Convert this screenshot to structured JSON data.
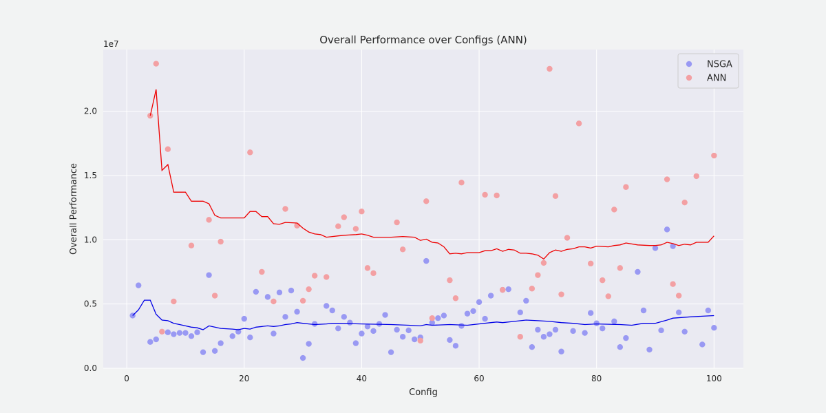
{
  "chart_data": {
    "type": "scatter",
    "title": "Overall Performance over Configs (ANN)",
    "xlabel": "Config",
    "ylabel": "Overall Performance",
    "y_offset_label": "1e7",
    "y_scale": 10000000,
    "xlim": [
      -4,
      105
    ],
    "ylim": [
      0,
      24.8
    ],
    "x_ticks": [
      0,
      20,
      40,
      60,
      80,
      100
    ],
    "x_tick_labels": [
      "0",
      "20",
      "40",
      "60",
      "80",
      "100"
    ],
    "y_ticks": [
      0,
      5,
      10,
      15,
      20
    ],
    "y_tick_labels": [
      "0.0",
      "0.5",
      "1.0",
      "1.5",
      "2.0"
    ],
    "grid": true,
    "legend_position": "top-right",
    "colors": {
      "background": "#eaeaf2",
      "grid": "#ffffff",
      "nsga_point": "#9999f3",
      "ann_point": "#f3a0a3",
      "nsga_line": "#0000e6",
      "ann_line": "#ee0000"
    },
    "series": [
      {
        "name": "NSGA",
        "points": [
          [
            1,
            4.1
          ],
          [
            2,
            6.45
          ],
          [
            4,
            2.05
          ],
          [
            5,
            2.25
          ],
          [
            6,
            null
          ],
          [
            7,
            2.8
          ],
          [
            8,
            2.65
          ],
          [
            9,
            2.75
          ],
          [
            10,
            2.75
          ],
          [
            11,
            2.5
          ],
          [
            12,
            2.8
          ],
          [
            13,
            1.25
          ],
          [
            14,
            7.25
          ],
          [
            15,
            1.35
          ],
          [
            16,
            1.95
          ],
          [
            18,
            2.5
          ],
          [
            19,
            2.85
          ],
          [
            20,
            3.85
          ],
          [
            21,
            2.4
          ],
          [
            22,
            5.95
          ],
          [
            24,
            5.55
          ],
          [
            25,
            2.7
          ],
          [
            26,
            5.9
          ],
          [
            27,
            4.0
          ],
          [
            28,
            6.05
          ],
          [
            29,
            4.4
          ],
          [
            30,
            0.8
          ],
          [
            31,
            1.9
          ],
          [
            32,
            3.45
          ],
          [
            34,
            4.85
          ],
          [
            35,
            4.5
          ],
          [
            36,
            3.1
          ],
          [
            37,
            4.0
          ],
          [
            38,
            3.55
          ],
          [
            39,
            1.95
          ],
          [
            40,
            2.7
          ],
          [
            41,
            3.25
          ],
          [
            42,
            2.9
          ],
          [
            43,
            3.45
          ],
          [
            44,
            4.15
          ],
          [
            45,
            1.25
          ],
          [
            46,
            3.0
          ],
          [
            47,
            2.45
          ],
          [
            48,
            2.95
          ],
          [
            49,
            2.25
          ],
          [
            50,
            2.4
          ],
          [
            51,
            8.35
          ],
          [
            52,
            3.55
          ],
          [
            53,
            3.9
          ],
          [
            54,
            4.1
          ],
          [
            55,
            2.2
          ],
          [
            56,
            1.75
          ],
          [
            57,
            3.3
          ],
          [
            58,
            4.25
          ],
          [
            59,
            4.45
          ],
          [
            60,
            5.15
          ],
          [
            61,
            3.85
          ],
          [
            62,
            5.65
          ],
          [
            64,
            6.1
          ],
          [
            65,
            6.15
          ],
          [
            67,
            4.35
          ],
          [
            68,
            5.25
          ],
          [
            69,
            1.65
          ],
          [
            70,
            3.0
          ],
          [
            71,
            2.45
          ],
          [
            72,
            2.65
          ],
          [
            73,
            3.0
          ],
          [
            74,
            1.3
          ],
          [
            76,
            2.9
          ],
          [
            78,
            2.75
          ],
          [
            79,
            4.3
          ],
          [
            80,
            3.5
          ],
          [
            81,
            3.1
          ],
          [
            83,
            3.65
          ],
          [
            84,
            1.65
          ],
          [
            85,
            2.35
          ],
          [
            87,
            7.5
          ],
          [
            88,
            4.5
          ],
          [
            89,
            1.45
          ],
          [
            90,
            9.35
          ],
          [
            91,
            2.95
          ],
          [
            92,
            10.8
          ],
          [
            93,
            9.5
          ],
          [
            94,
            4.35
          ],
          [
            95,
            2.85
          ],
          [
            98,
            1.85
          ],
          [
            99,
            4.5
          ],
          [
            100,
            3.15
          ]
        ],
        "line": [
          [
            1,
            4.1
          ],
          [
            2,
            4.55
          ],
          [
            3,
            5.3
          ],
          [
            4,
            5.3
          ],
          [
            5,
            4.2
          ],
          [
            6,
            3.75
          ],
          [
            7,
            3.7
          ],
          [
            8,
            3.5
          ],
          [
            9,
            3.4
          ],
          [
            10,
            3.3
          ],
          [
            11,
            3.2
          ],
          [
            12,
            3.15
          ],
          [
            13,
            3.0
          ],
          [
            14,
            3.3
          ],
          [
            15,
            3.2
          ],
          [
            16,
            3.1
          ],
          [
            18,
            3.05
          ],
          [
            19,
            3.0
          ],
          [
            20,
            3.1
          ],
          [
            21,
            3.05
          ],
          [
            22,
            3.2
          ],
          [
            24,
            3.3
          ],
          [
            25,
            3.25
          ],
          [
            26,
            3.3
          ],
          [
            27,
            3.4
          ],
          [
            28,
            3.45
          ],
          [
            29,
            3.55
          ],
          [
            30,
            3.5
          ],
          [
            31,
            3.45
          ],
          [
            32,
            3.4
          ],
          [
            34,
            3.45
          ],
          [
            35,
            3.5
          ],
          [
            36,
            3.5
          ],
          [
            40,
            3.45
          ],
          [
            45,
            3.4
          ],
          [
            48,
            3.35
          ],
          [
            50,
            3.3
          ],
          [
            51,
            3.4
          ],
          [
            52,
            3.35
          ],
          [
            55,
            3.4
          ],
          [
            58,
            3.35
          ],
          [
            62,
            3.55
          ],
          [
            63,
            3.6
          ],
          [
            64,
            3.55
          ],
          [
            66,
            3.65
          ],
          [
            68,
            3.75
          ],
          [
            70,
            3.7
          ],
          [
            72,
            3.65
          ],
          [
            74,
            3.55
          ],
          [
            76,
            3.5
          ],
          [
            78,
            3.4
          ],
          [
            80,
            3.45
          ],
          [
            84,
            3.4
          ],
          [
            86,
            3.35
          ],
          [
            88,
            3.5
          ],
          [
            90,
            3.5
          ],
          [
            92,
            3.75
          ],
          [
            93,
            3.9
          ],
          [
            96,
            4.0
          ],
          [
            98,
            4.05
          ],
          [
            100,
            4.1
          ]
        ]
      },
      {
        "name": "ANN",
        "points": [
          [
            4,
            19.65
          ],
          [
            5,
            23.7
          ],
          [
            6,
            2.85
          ],
          [
            7,
            17.05
          ],
          [
            8,
            5.2
          ],
          [
            11,
            9.55
          ],
          [
            14,
            11.55
          ],
          [
            15,
            5.65
          ],
          [
            16,
            9.85
          ],
          [
            21,
            16.8
          ],
          [
            23,
            7.5
          ],
          [
            25,
            5.2
          ],
          [
            27,
            12.4
          ],
          [
            29,
            11.1
          ],
          [
            30,
            5.25
          ],
          [
            31,
            6.15
          ],
          [
            32,
            7.2
          ],
          [
            34,
            7.1
          ],
          [
            36,
            11.05
          ],
          [
            37,
            11.75
          ],
          [
            39,
            10.85
          ],
          [
            40,
            12.2
          ],
          [
            41,
            7.8
          ],
          [
            42,
            7.4
          ],
          [
            46,
            11.35
          ],
          [
            47,
            9.25
          ],
          [
            51,
            13.0
          ],
          [
            52,
            3.9
          ],
          [
            50,
            2.15
          ],
          [
            55,
            6.85
          ],
          [
            56,
            5.45
          ],
          [
            57,
            14.45
          ],
          [
            61,
            13.5
          ],
          [
            63,
            13.45
          ],
          [
            64,
            6.1
          ],
          [
            67,
            2.45
          ],
          [
            69,
            6.2
          ],
          [
            70,
            7.25
          ],
          [
            71,
            8.2
          ],
          [
            72,
            23.3
          ],
          [
            73,
            13.4
          ],
          [
            74,
            5.75
          ],
          [
            75,
            10.15
          ],
          [
            77,
            19.05
          ],
          [
            79,
            8.15
          ],
          [
            81,
            6.85
          ],
          [
            82,
            5.6
          ],
          [
            83,
            12.35
          ],
          [
            84,
            7.8
          ],
          [
            85,
            14.1
          ],
          [
            92,
            14.7
          ],
          [
            93,
            6.55
          ],
          [
            94,
            5.65
          ],
          [
            95,
            12.9
          ],
          [
            97,
            14.95
          ],
          [
            100,
            16.55
          ]
        ],
        "line": [
          [
            4,
            19.65
          ],
          [
            5,
            21.7
          ],
          [
            6,
            15.4
          ],
          [
            7,
            15.85
          ],
          [
            8,
            13.7
          ],
          [
            10,
            13.7
          ],
          [
            11,
            13.0
          ],
          [
            13,
            13.0
          ],
          [
            14,
            12.8
          ],
          [
            15,
            11.9
          ],
          [
            16,
            11.7
          ],
          [
            20,
            11.7
          ],
          [
            21,
            12.2
          ],
          [
            22,
            12.2
          ],
          [
            23,
            11.8
          ],
          [
            24,
            11.8
          ],
          [
            25,
            11.25
          ],
          [
            26,
            11.2
          ],
          [
            27,
            11.35
          ],
          [
            29,
            11.3
          ],
          [
            30,
            10.9
          ],
          [
            31,
            10.6
          ],
          [
            32,
            10.45
          ],
          [
            33,
            10.4
          ],
          [
            34,
            10.2
          ],
          [
            36,
            10.3
          ],
          [
            37,
            10.35
          ],
          [
            39,
            10.4
          ],
          [
            40,
            10.45
          ],
          [
            41,
            10.35
          ],
          [
            42,
            10.2
          ],
          [
            45,
            10.2
          ],
          [
            47,
            10.25
          ],
          [
            49,
            10.2
          ],
          [
            50,
            9.95
          ],
          [
            51,
            10.05
          ],
          [
            52,
            9.8
          ],
          [
            53,
            9.75
          ],
          [
            54,
            9.45
          ],
          [
            55,
            8.9
          ],
          [
            56,
            8.95
          ],
          [
            57,
            8.9
          ],
          [
            58,
            9.0
          ],
          [
            60,
            9.0
          ],
          [
            61,
            9.15
          ],
          [
            62,
            9.15
          ],
          [
            63,
            9.3
          ],
          [
            64,
            9.1
          ],
          [
            65,
            9.25
          ],
          [
            66,
            9.2
          ],
          [
            67,
            8.95
          ],
          [
            68,
            8.95
          ],
          [
            69,
            8.9
          ],
          [
            70,
            8.8
          ],
          [
            71,
            8.5
          ],
          [
            72,
            9.0
          ],
          [
            73,
            9.2
          ],
          [
            74,
            9.1
          ],
          [
            75,
            9.25
          ],
          [
            76,
            9.3
          ],
          [
            77,
            9.45
          ],
          [
            78,
            9.45
          ],
          [
            79,
            9.35
          ],
          [
            80,
            9.5
          ],
          [
            82,
            9.45
          ],
          [
            83,
            9.55
          ],
          [
            84,
            9.6
          ],
          [
            85,
            9.75
          ],
          [
            87,
            9.6
          ],
          [
            89,
            9.55
          ],
          [
            90,
            9.55
          ],
          [
            91,
            9.6
          ],
          [
            92,
            9.8
          ],
          [
            93,
            9.7
          ],
          [
            94,
            9.55
          ],
          [
            95,
            9.65
          ],
          [
            96,
            9.6
          ],
          [
            97,
            9.8
          ],
          [
            99,
            9.8
          ],
          [
            100,
            10.3
          ]
        ]
      }
    ]
  }
}
